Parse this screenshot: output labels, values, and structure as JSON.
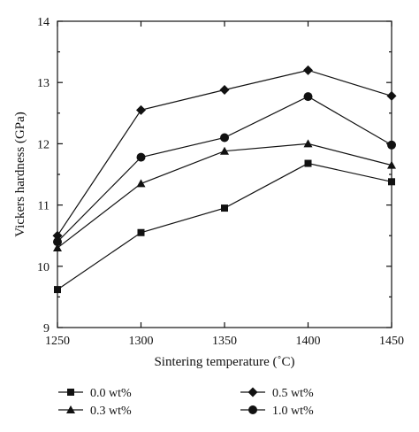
{
  "chart_data": {
    "type": "line",
    "title": "",
    "xlabel": "Sintering temperature (˚C)",
    "ylabel": "Vickers hardness (GPa)",
    "x": [
      1250,
      1300,
      1350,
      1400,
      1450
    ],
    "xlim": [
      1250,
      1450
    ],
    "ylim": [
      9,
      14
    ],
    "xticks": [
      "1250",
      "1300",
      "1350",
      "1400",
      "1450"
    ],
    "yticks": [
      "9",
      "10",
      "11",
      "12",
      "13",
      "14"
    ],
    "grid": false,
    "legend_position": "bottom",
    "series": [
      {
        "name": "0.0 wt%",
        "marker": "square",
        "values": [
          9.62,
          10.55,
          10.95,
          11.68,
          11.38
        ]
      },
      {
        "name": "0.3 wt%",
        "marker": "triangle",
        "values": [
          10.3,
          11.35,
          11.88,
          12.0,
          11.65
        ]
      },
      {
        "name": "0.5 wt%",
        "marker": "diamond",
        "values": [
          10.5,
          12.55,
          12.88,
          13.2,
          12.78
        ]
      },
      {
        "name": "1.0 wt%",
        "marker": "circle",
        "values": [
          10.4,
          11.78,
          12.1,
          12.77,
          11.98
        ]
      }
    ],
    "color": "#111111"
  }
}
